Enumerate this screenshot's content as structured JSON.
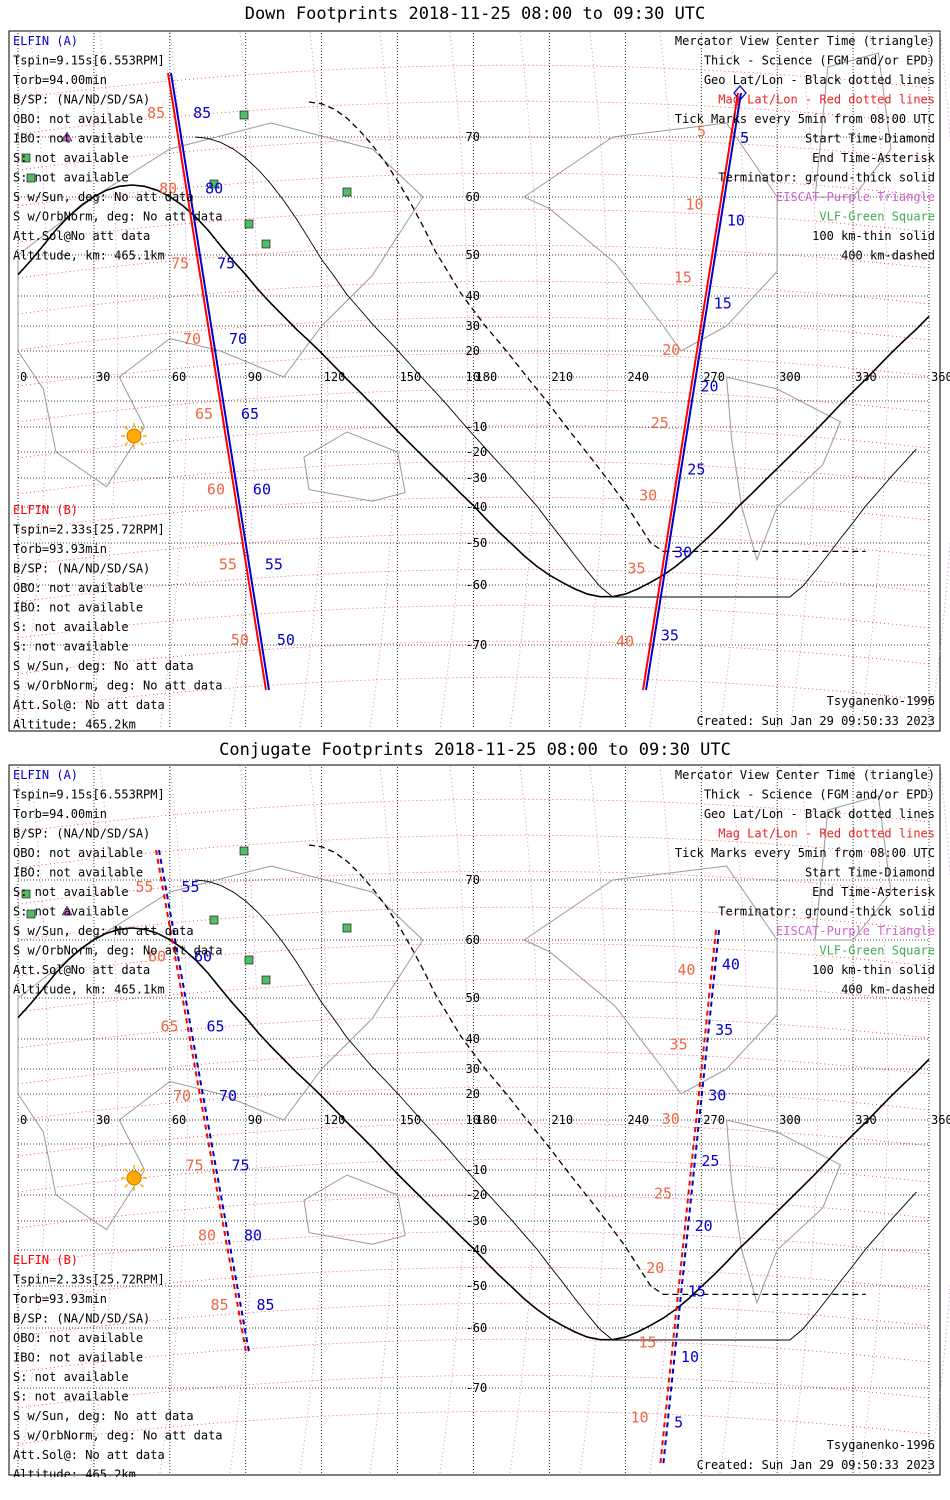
{
  "panels": [
    {
      "id": "down",
      "title": "Down Footprints 2018-11-25 08:00 to 09:30 UTC",
      "left_info_a": [
        "ELFIN (A)",
        "Tspin=9.15s[6.553RPM]",
        "Torb=94.00min",
        "B/SP: (NA/ND/SD/SA)",
        "OBO: not available",
        "IBO: not available",
        "S: not available",
        "S: not available",
        "S w/Sun, deg: No att data",
        "S w/OrbNorm, deg: No att data",
        "Att.Sol@No att data",
        "Altitude, km: 465.1km"
      ],
      "left_info_b": [
        "ELFIN (B)",
        "Tspin=2.33s[25.72RPM]",
        "Torb=93.93min",
        "B/SP: (NA/ND/SD/SA)",
        "OBO: not available",
        "IBO: not available",
        "S: not available",
        "S: not available",
        "S w/Sun, deg: No att data",
        "S w/OrbNorm, deg: No att data",
        "Att.Sol@: No att data",
        "Altitude: 465.2km"
      ],
      "legend": [
        "Mercator View Center Time (triangle)",
        "Thick - Science (FGM and/or EPD)",
        "Geo Lat/Lon - Black dotted lines",
        "Mag Lat/Lon - Red dotted lines",
        "Tick Marks every 5min from 08:00 UTC",
        "Start Time-Diamond",
        "End Time-Asterisk",
        "Terminator: ground-thick solid",
        "EISCAT-Purple Triangle",
        "VLF-Green Square",
        "100 km-thin solid",
        "400 km-dashed"
      ],
      "model": "Tsyganenko-1996",
      "created": "Created: Sun Jan 29 09:50:33 2023",
      "track_a_lat_labels": [
        "85",
        "80",
        "75",
        "70",
        "65",
        "60",
        "55",
        "50"
      ],
      "track_b_lat_labels": [
        "85",
        "80",
        "75",
        "70",
        "65",
        "60",
        "55",
        "50"
      ],
      "track_a_right_labels": [
        "5",
        "10",
        "15",
        "20",
        "25",
        "30",
        "35"
      ],
      "track_b_right_labels": [
        "5",
        "10",
        "15",
        "20",
        "25",
        "30",
        "35",
        "40"
      ]
    },
    {
      "id": "conjugate",
      "title": "Conjugate Footprints 2018-11-25 08:00 to 09:30 UTC",
      "left_info_a": [
        "ELFIN (A)",
        "Tspin=9.15s[6.553RPM]",
        "Torb=94.00min",
        "B/SP: (NA/ND/SD/SA)",
        "OBO: not available",
        "IBO: not available",
        "S: not available",
        "S: not available",
        "S w/Sun, deg: No att data",
        "S w/OrbNorm, deg: No att data",
        "Att.Sol@No att data",
        "Altitude, km: 465.1km"
      ],
      "left_info_b": [
        "ELFIN (B)",
        "Tspin=2.33s[25.72RPM]",
        "Torb=93.93min",
        "B/SP: (NA/ND/SD/SA)",
        "OBO: not available",
        "IBO: not available",
        "S: not available",
        "S: not available",
        "S w/Sun, deg: No att data",
        "S w/OrbNorm, deg: No att data",
        "Att.Sol@: No att data",
        "Altitude: 465.2km"
      ],
      "legend": [
        "Mercator View Center Time (triangle)",
        "Thick - Science (FGM and/or EPD)",
        "Geo Lat/Lon - Black dotted lines",
        "Mag Lat/Lon - Red dotted lines",
        "Tick Marks every 5min from 08:00 UTC",
        "Start Time-Diamond",
        "End Time-Asterisk",
        "Terminator: ground-thick solid",
        "EISCAT-Purple Triangle",
        "VLF-Green Square",
        "100 km-thin solid",
        "400 km-dashed"
      ],
      "model": "Tsyganenko-1996",
      "created": "Created: Sun Jan 29 09:50:33 2023",
      "track_a_lat_labels": [
        "55",
        "60",
        "65",
        "70",
        "75",
        "80",
        "85"
      ],
      "track_b_lat_labels": [
        "55",
        "60",
        "65",
        "70",
        "75",
        "80",
        "85"
      ],
      "track_a_right_labels": [
        "40",
        "35",
        "30",
        "25",
        "20",
        "15",
        "10",
        "5"
      ],
      "track_b_right_labels": [
        "40",
        "35",
        "30",
        "25",
        "20",
        "15",
        "10"
      ]
    }
  ],
  "map": {
    "lon_ticks": [
      "0",
      "30",
      "60",
      "90",
      "120",
      "150",
      "180",
      "210",
      "240",
      "270",
      "300",
      "330",
      "360"
    ],
    "lat_ticks": [
      "70",
      "60",
      "50",
      "40",
      "30",
      "20",
      "10",
      "-10",
      "-20",
      "-30",
      "-40",
      "-50",
      "-60",
      "-70"
    ]
  },
  "colors": {
    "elfin_a": "#0000cc",
    "elfin_b": "#ff0000",
    "mag_label": "#ee6644",
    "eiscat": "#cc66cc",
    "vlf": "#44aa55",
    "mag_grid": "#ee3333",
    "geo_grid": "#000000"
  },
  "icons": [
    "sun-icon",
    "start-diamond-icon",
    "eiscat-triangle-icon",
    "vlf-square-icon"
  ]
}
